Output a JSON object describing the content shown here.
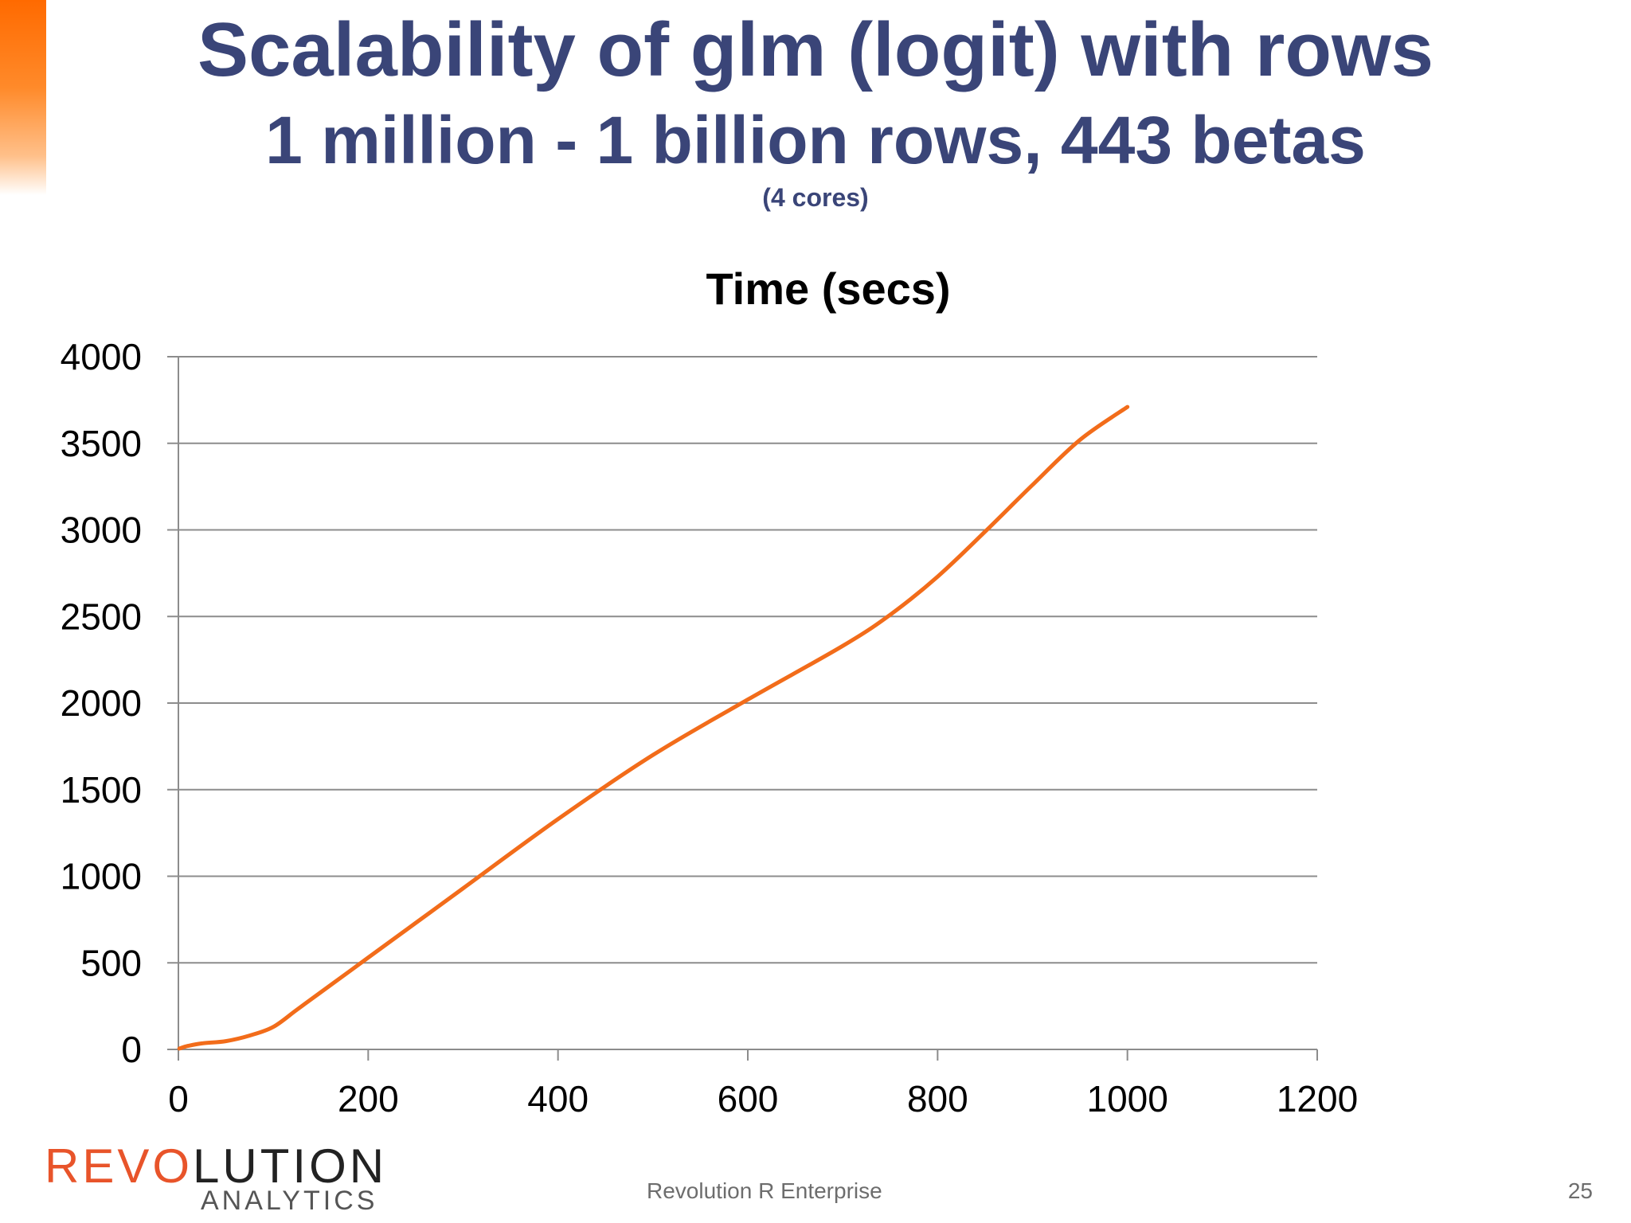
{
  "slide": {
    "title": "Scalability of glm (logit) with rows",
    "subtitle": "1 million - 1 billion rows, 443 betas",
    "note": "(4 cores)",
    "accent_color": "#ff6a00",
    "title_color": "#3a4578"
  },
  "footer": {
    "logo_part1": "REVO",
    "logo_part2": "LUTION",
    "logo_sub": "ANALYTICS",
    "text": "Revolution R Enterprise",
    "page_number": "25"
  },
  "chart_data": {
    "type": "line",
    "title": "Time (secs)",
    "xlabel": "",
    "ylabel": "",
    "xlim": [
      0,
      1200
    ],
    "ylim": [
      0,
      4000
    ],
    "xticks": [
      0,
      200,
      400,
      600,
      800,
      1000,
      1200
    ],
    "yticks": [
      0,
      500,
      1000,
      1500,
      2000,
      2500,
      3000,
      3500,
      4000
    ],
    "grid": "horizontal",
    "legend": "none",
    "series": [
      {
        "color": "#f26c1a",
        "x": [
          1,
          10,
          25,
          50,
          75,
          100,
          125,
          150,
          200,
          250,
          300,
          400,
          500,
          600,
          700,
          750,
          800,
          850,
          900,
          950,
          1000
        ],
        "y": [
          5,
          20,
          35,
          48,
          80,
          130,
          230,
          330,
          530,
          730,
          930,
          1330,
          1700,
          2020,
          2330,
          2510,
          2730,
          2990,
          3260,
          3520,
          3710
        ]
      }
    ]
  }
}
